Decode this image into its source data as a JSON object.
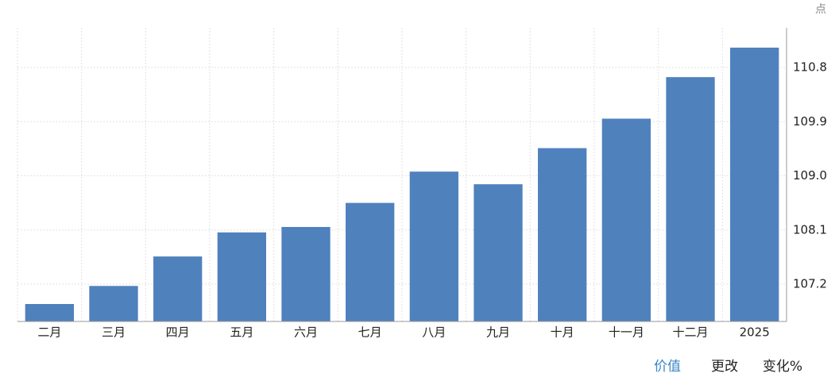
{
  "chart_data": {
    "type": "bar",
    "unit": "点",
    "categories": [
      "二月",
      "三月",
      "四月",
      "五月",
      "六月",
      "七月",
      "八月",
      "九月",
      "十月",
      "十一月",
      "十二月",
      "2025"
    ],
    "values": [
      106.87,
      107.17,
      107.66,
      108.06,
      108.15,
      108.55,
      109.07,
      108.86,
      109.46,
      109.95,
      110.64,
      111.13
    ],
    "color": "#4f81bd",
    "ylim": [
      106.58,
      111.46
    ],
    "yticks": [
      107.2,
      108.1,
      {
        "value": 109,
        "label": "109.0"
      },
      109.9,
      110.8
    ],
    "grid": true
  },
  "tabs": [
    "价值",
    "更改",
    "变化%"
  ]
}
